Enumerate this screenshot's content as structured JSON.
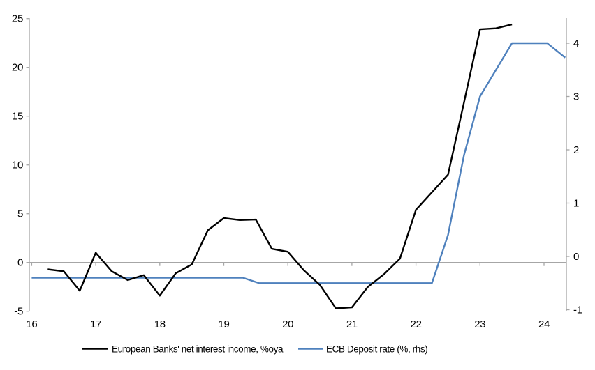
{
  "chart_data": {
    "type": "line",
    "title": "",
    "xlabel": "",
    "ylabel_left": "",
    "ylabel_right": "",
    "grid": "zero-line-only",
    "legend_position": "bottom",
    "x_axis": {
      "tick_labels": [
        "16",
        "17",
        "18",
        "19",
        "20",
        "21",
        "22",
        "23",
        "24"
      ],
      "tick_values": [
        16,
        17,
        18,
        19,
        20,
        21,
        22,
        23,
        24
      ],
      "range": [
        16,
        24.4
      ]
    },
    "left_axis": {
      "tick_labels": [
        "-5",
        "0",
        "5",
        "10",
        "15",
        "20",
        "25"
      ],
      "tick_values": [
        -5,
        0,
        5,
        10,
        15,
        20,
        25
      ],
      "range": [
        -5,
        25
      ]
    },
    "right_axis": {
      "tick_labels": [
        "-1",
        "0",
        "1",
        "2",
        "3",
        "4"
      ],
      "tick_values": [
        -1,
        0,
        1,
        2,
        3,
        4
      ],
      "range": [
        -1,
        4.5
      ]
    },
    "series": [
      {
        "name": "European Banks' net interest income, %oya",
        "axis": "left",
        "color": "#000000",
        "x": [
          16.25,
          16.5,
          16.75,
          17.0,
          17.25,
          17.5,
          17.75,
          18.0,
          18.25,
          18.5,
          18.75,
          19.0,
          19.25,
          19.5,
          19.75,
          20.0,
          20.25,
          20.5,
          20.75,
          21.0,
          21.25,
          21.5,
          21.75,
          22.0,
          22.25,
          22.5,
          22.75,
          23.0,
          23.25,
          23.5
        ],
        "values": [
          -0.7,
          -0.9,
          -2.9,
          1.0,
          -0.9,
          -1.8,
          -1.3,
          -3.4,
          -1.1,
          -0.2,
          3.3,
          4.55,
          4.35,
          4.4,
          1.4,
          1.1,
          -0.8,
          -2.3,
          -4.7,
          -4.6,
          -2.5,
          -1.2,
          0.4,
          5.4,
          7.2,
          9.0,
          16.4,
          23.9,
          24.0,
          24.4
        ]
      },
      {
        "name": "ECB Deposit rate (%, rhs)",
        "axis": "right",
        "color": "#4F81BD",
        "x": [
          16.0,
          19.3,
          19.55,
          22.25,
          22.5,
          22.75,
          23.0,
          23.3,
          23.5,
          24.05,
          24.33
        ],
        "values": [
          -0.4,
          -0.4,
          -0.5,
          -0.5,
          0.4,
          1.9,
          3.0,
          3.6,
          4.0,
          4.0,
          3.73
        ]
      }
    ],
    "colors": {
      "nii_line": "#000000",
      "ecb_line": "#4F81BD",
      "axis_gray": "#A6A6A6",
      "label_text": "#000000"
    }
  }
}
